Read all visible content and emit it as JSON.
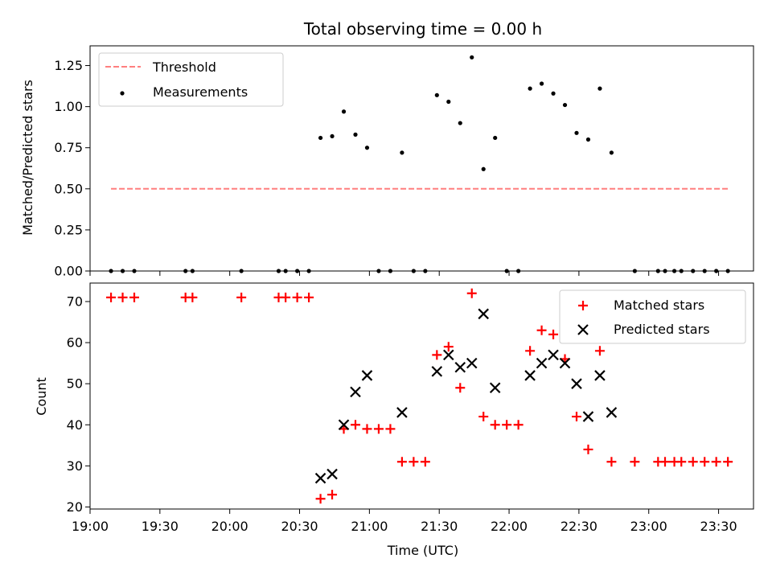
{
  "chart_data": [
    {
      "type": "scatter",
      "title": "Total observing time = 0.00 h",
      "xlabel": "",
      "ylabel": "Matched/Predicted stars",
      "xlim": [
        "19:00",
        "23:45"
      ],
      "ylim": [
        0.0,
        1.37
      ],
      "yticks": [
        "0.00",
        "0.25",
        "0.50",
        "0.75",
        "1.00",
        "1.25"
      ],
      "legend": {
        "placement": "top-left",
        "entries": [
          "Threshold",
          "Measurements"
        ]
      },
      "threshold": {
        "name": "Threshold",
        "x_start": "19:09",
        "x_end": "23:34",
        "y": 0.5,
        "color": "#ff7f7f",
        "style": "dashed"
      },
      "series": [
        {
          "name": "Measurements",
          "color": "#000000",
          "marker": "dot",
          "points": [
            [
              "19:09",
              0.0
            ],
            [
              "19:14",
              0.0
            ],
            [
              "19:19",
              0.0
            ],
            [
              "19:41",
              0.0
            ],
            [
              "19:44",
              0.0
            ],
            [
              "20:05",
              0.0
            ],
            [
              "20:21",
              0.0
            ],
            [
              "20:24",
              0.0
            ],
            [
              "20:29",
              0.0
            ],
            [
              "20:34",
              0.0
            ],
            [
              "20:39",
              0.81
            ],
            [
              "20:44",
              0.82
            ],
            [
              "20:49",
              0.97
            ],
            [
              "20:54",
              0.83
            ],
            [
              "20:59",
              0.75
            ],
            [
              "21:04",
              0.0
            ],
            [
              "21:09",
              0.0
            ],
            [
              "21:14",
              0.72
            ],
            [
              "21:19",
              0.0
            ],
            [
              "21:24",
              0.0
            ],
            [
              "21:29",
              1.07
            ],
            [
              "21:34",
              1.03
            ],
            [
              "21:39",
              0.9
            ],
            [
              "21:44",
              1.3
            ],
            [
              "21:49",
              0.62
            ],
            [
              "21:54",
              0.81
            ],
            [
              "21:59",
              0.0
            ],
            [
              "22:04",
              0.0
            ],
            [
              "22:09",
              1.11
            ],
            [
              "22:14",
              1.14
            ],
            [
              "22:19",
              1.08
            ],
            [
              "22:24",
              1.01
            ],
            [
              "22:29",
              0.84
            ],
            [
              "22:34",
              0.8
            ],
            [
              "22:39",
              1.11
            ],
            [
              "22:44",
              0.72
            ],
            [
              "22:54",
              0.0
            ],
            [
              "23:04",
              0.0
            ],
            [
              "23:07",
              0.0
            ],
            [
              "23:11",
              0.0
            ],
            [
              "23:14",
              0.0
            ],
            [
              "23:19",
              0.0
            ],
            [
              "23:24",
              0.0
            ],
            [
              "23:29",
              0.0
            ],
            [
              "23:34",
              0.0
            ]
          ]
        }
      ]
    },
    {
      "type": "scatter",
      "title": "",
      "xlabel": "Time (UTC)",
      "ylabel": "Count",
      "xlim": [
        "19:00",
        "23:45"
      ],
      "ylim": [
        19.5,
        74.5
      ],
      "xticks": [
        "19:00",
        "19:30",
        "20:00",
        "20:30",
        "21:00",
        "21:30",
        "22:00",
        "22:30",
        "23:00",
        "23:30"
      ],
      "yticks": [
        "20",
        "30",
        "40",
        "50",
        "60",
        "70"
      ],
      "legend": {
        "placement": "top-right",
        "entries": [
          "Matched stars",
          "Predicted stars"
        ]
      },
      "series": [
        {
          "name": "Matched stars",
          "color": "#ff0000",
          "marker": "plus",
          "points": [
            [
              "19:09",
              71
            ],
            [
              "19:14",
              71
            ],
            [
              "19:19",
              71
            ],
            [
              "19:41",
              71
            ],
            [
              "19:44",
              71
            ],
            [
              "20:05",
              71
            ],
            [
              "20:21",
              71
            ],
            [
              "20:24",
              71
            ],
            [
              "20:29",
              71
            ],
            [
              "20:34",
              71
            ],
            [
              "20:39",
              22
            ],
            [
              "20:44",
              23
            ],
            [
              "20:49",
              39
            ],
            [
              "20:54",
              40
            ],
            [
              "20:59",
              39
            ],
            [
              "21:04",
              39
            ],
            [
              "21:09",
              39
            ],
            [
              "21:14",
              31
            ],
            [
              "21:19",
              31
            ],
            [
              "21:24",
              31
            ],
            [
              "21:29",
              57
            ],
            [
              "21:34",
              59
            ],
            [
              "21:39",
              49
            ],
            [
              "21:44",
              72
            ],
            [
              "21:49",
              42
            ],
            [
              "21:54",
              40
            ],
            [
              "21:59",
              40
            ],
            [
              "22:04",
              40
            ],
            [
              "22:09",
              58
            ],
            [
              "22:14",
              63
            ],
            [
              "22:19",
              62
            ],
            [
              "22:24",
              56
            ],
            [
              "22:29",
              42
            ],
            [
              "22:34",
              34
            ],
            [
              "22:39",
              58
            ],
            [
              "22:44",
              31
            ],
            [
              "22:54",
              31
            ],
            [
              "23:04",
              31
            ],
            [
              "23:07",
              31
            ],
            [
              "23:11",
              31
            ],
            [
              "23:14",
              31
            ],
            [
              "23:19",
              31
            ],
            [
              "23:24",
              31
            ],
            [
              "23:29",
              31
            ],
            [
              "23:34",
              31
            ]
          ]
        },
        {
          "name": "Predicted stars",
          "color": "#000000",
          "marker": "x",
          "points": [
            [
              "20:39",
              27
            ],
            [
              "20:44",
              28
            ],
            [
              "20:49",
              40
            ],
            [
              "20:54",
              48
            ],
            [
              "20:59",
              52
            ],
            [
              "21:14",
              43
            ],
            [
              "21:29",
              53
            ],
            [
              "21:34",
              57
            ],
            [
              "21:39",
              54
            ],
            [
              "21:44",
              55
            ],
            [
              "21:49",
              67
            ],
            [
              "21:54",
              49
            ],
            [
              "22:09",
              52
            ],
            [
              "22:14",
              55
            ],
            [
              "22:19",
              57
            ],
            [
              "22:24",
              55
            ],
            [
              "22:29",
              50
            ],
            [
              "22:34",
              42
            ],
            [
              "22:39",
              52
            ],
            [
              "22:44",
              43
            ]
          ]
        }
      ]
    }
  ]
}
